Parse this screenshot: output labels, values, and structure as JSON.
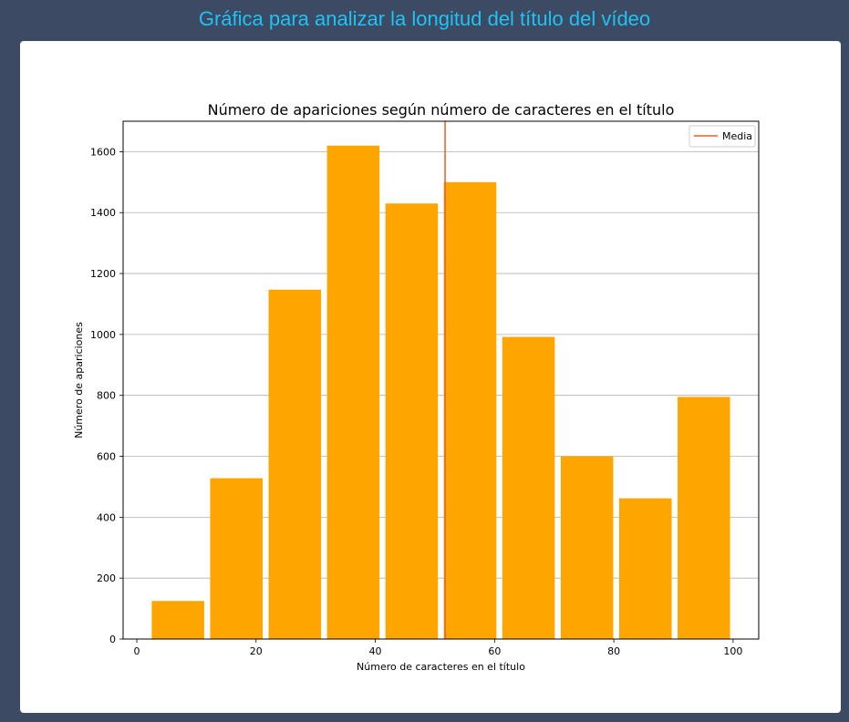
{
  "page": {
    "heading": "Gráfica para analizar la longitud del título del vídeo"
  },
  "colors": {
    "background": "#3c4a63",
    "heading": "#1ec3f5",
    "bar": "#ffa500",
    "mean_line": "#f05a28",
    "grid": "#b0b0b0"
  },
  "chart_data": {
    "type": "bar",
    "title": "Número de apariciones según número de caracteres en el título",
    "xlabel": "Número de caracteres en el título",
    "ylabel": "Número de apariciones",
    "bins": [
      {
        "start": 2.5,
        "end": 11.3,
        "value": 125
      },
      {
        "start": 12.3,
        "end": 21.1,
        "value": 528
      },
      {
        "start": 22.1,
        "end": 30.9,
        "value": 1147
      },
      {
        "start": 31.9,
        "end": 40.7,
        "value": 1620
      },
      {
        "start": 41.7,
        "end": 50.5,
        "value": 1430
      },
      {
        "start": 51.5,
        "end": 60.3,
        "value": 1500
      },
      {
        "start": 61.3,
        "end": 70.1,
        "value": 992
      },
      {
        "start": 71.1,
        "end": 79.9,
        "value": 600
      },
      {
        "start": 80.9,
        "end": 89.7,
        "value": 462
      },
      {
        "start": 90.7,
        "end": 99.5,
        "value": 795
      }
    ],
    "mean_line": {
      "label": "Media",
      "x": 51.7
    },
    "xlim": [
      -2.3,
      104.3
    ],
    "ylim": [
      0,
      1700
    ],
    "xticks": [
      0,
      20,
      40,
      60,
      80,
      100
    ],
    "yticks": [
      0,
      200,
      400,
      600,
      800,
      1000,
      1200,
      1400,
      1600
    ],
    "grid": "y",
    "legend": "top-right"
  }
}
